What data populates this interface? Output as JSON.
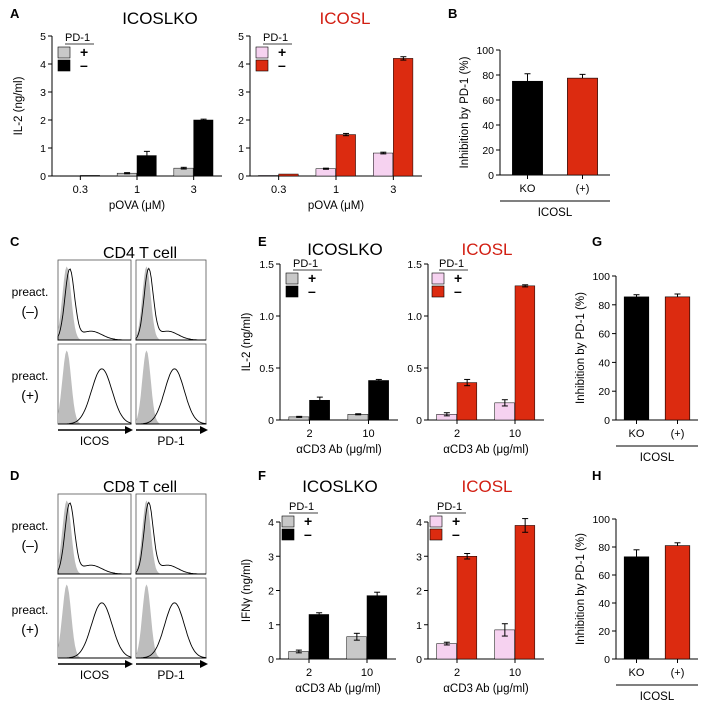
{
  "colors": {
    "ko_plus": "#c8c8c8",
    "ko_minus": "#000000",
    "wt_plus": "#f6d2f0",
    "wt_minus": "#dc2b10",
    "red_title": "#d21e12",
    "hist_fill": "#bdbdbd"
  },
  "chart_data": [
    {
      "id": "A-ko",
      "type": "bar",
      "panel": "A",
      "title": "ICOSLKO",
      "title_color": "black",
      "categories": [
        "0.3",
        "1",
        "3"
      ],
      "xlabel": "pOVA (μM)",
      "ylabel": "IL-2 (ng/ml)",
      "ylim": [
        0,
        5
      ],
      "yticks": [
        "0",
        "1",
        "2",
        "3",
        "4",
        "5"
      ],
      "tick_values": [
        0,
        1,
        2,
        3,
        4,
        5
      ],
      "legend": {
        "title": "PD-1",
        "labels": [
          "+",
          "–"
        ]
      },
      "series": [
        {
          "name": "+",
          "color_key": "ko_plus",
          "values": [
            0.01,
            0.1,
            0.28
          ],
          "errors": [
            0,
            0.02,
            0.03
          ]
        },
        {
          "name": "–",
          "color_key": "ko_minus",
          "values": [
            0.02,
            0.73,
            2.0
          ],
          "errors": [
            0,
            0.15,
            0.03
          ]
        }
      ]
    },
    {
      "id": "A-wt",
      "type": "bar",
      "panel": "",
      "title": "ICOSL",
      "title_color": "red",
      "categories": [
        "0.3",
        "1",
        "3"
      ],
      "xlabel": "pOVA (μM)",
      "ylabel": "",
      "ylim": [
        0,
        5
      ],
      "yticks": [
        "0",
        "1",
        "2",
        "3",
        "4",
        "5"
      ],
      "tick_values": [
        0,
        1,
        2,
        3,
        4,
        5
      ],
      "legend": {
        "title": "PD-1",
        "labels": [
          "+",
          "–"
        ]
      },
      "series": [
        {
          "name": "+",
          "color_key": "wt_plus",
          "values": [
            0.02,
            0.26,
            0.82
          ],
          "errors": [
            0,
            0.02,
            0.03
          ]
        },
        {
          "name": "–",
          "color_key": "wt_minus",
          "values": [
            0.07,
            1.48,
            4.2
          ],
          "errors": [
            0,
            0.04,
            0.06
          ]
        }
      ]
    },
    {
      "id": "B",
      "type": "bar",
      "panel": "B",
      "title": "",
      "title_color": "black",
      "categories": [
        "KO",
        "(+)"
      ],
      "xlabel": "ICOSL",
      "ylabel": "Inhibition by PD-1 (%)",
      "ylim": [
        0,
        100
      ],
      "yticks": [
        "0",
        "20",
        "40",
        "60",
        "80",
        "100"
      ],
      "tick_values": [
        0,
        20,
        40,
        60,
        80,
        100
      ],
      "series": [
        {
          "name": "Inhibition",
          "colors_key": [
            "ko_minus",
            "wt_minus"
          ],
          "values": [
            75,
            77.5
          ],
          "errors": [
            6,
            3
          ]
        }
      ]
    },
    {
      "id": "E-ko",
      "type": "bar",
      "panel": "E",
      "title": "ICOSLKO",
      "title_color": "black",
      "categories": [
        "2",
        "10"
      ],
      "xlabel": "αCD3 Ab (μg/ml)",
      "ylabel": "IL-2 (ng/ml)",
      "ylim": [
        0,
        1.5
      ],
      "yticks": [
        "0",
        "0.5",
        "1.0",
        "1.5"
      ],
      "tick_values": [
        0,
        0.5,
        1.0,
        1.5
      ],
      "legend": {
        "title": "PD-1",
        "labels": [
          "+",
          "–"
        ]
      },
      "series": [
        {
          "name": "+",
          "color_key": "ko_plus",
          "values": [
            0.03,
            0.055
          ],
          "errors": [
            0.005,
            0.005
          ]
        },
        {
          "name": "–",
          "color_key": "ko_minus",
          "values": [
            0.19,
            0.38
          ],
          "errors": [
            0.03,
            0.01
          ]
        }
      ]
    },
    {
      "id": "E-wt",
      "type": "bar",
      "panel": "",
      "title": "ICOSL",
      "title_color": "red",
      "categories": [
        "2",
        "10"
      ],
      "xlabel": "αCD3 Ab (μg/ml)",
      "ylabel": "",
      "ylim": [
        0,
        1.5
      ],
      "yticks": [
        "0",
        "0.5",
        "1.0",
        "1.5"
      ],
      "tick_values": [
        0,
        0.5,
        1.0,
        1.5
      ],
      "legend": {
        "title": "PD-1",
        "labels": [
          "+",
          "–"
        ]
      },
      "series": [
        {
          "name": "+",
          "color_key": "wt_plus",
          "values": [
            0.055,
            0.165
          ],
          "errors": [
            0.015,
            0.03
          ]
        },
        {
          "name": "–",
          "color_key": "wt_minus",
          "values": [
            0.36,
            1.29
          ],
          "errors": [
            0.03,
            0.01
          ]
        }
      ]
    },
    {
      "id": "G",
      "type": "bar",
      "panel": "G",
      "title": "",
      "title_color": "black",
      "categories": [
        "KO",
        "(+)"
      ],
      "xlabel": "ICOSL",
      "ylabel": "Inhibition by PD-1 (%)",
      "ylim": [
        0,
        100
      ],
      "yticks": [
        "0",
        "20",
        "40",
        "60",
        "80",
        "100"
      ],
      "tick_values": [
        0,
        20,
        40,
        60,
        80,
        100
      ],
      "series": [
        {
          "name": "Inhibition",
          "colors_key": [
            "ko_minus",
            "wt_minus"
          ],
          "values": [
            85.5,
            85.5
          ],
          "errors": [
            1.5,
            2
          ]
        }
      ]
    },
    {
      "id": "F-ko",
      "type": "bar",
      "panel": "F",
      "title": "ICOSLKO",
      "title_color": "black",
      "categories": [
        "2",
        "10"
      ],
      "xlabel": "αCD3 Ab (μg/ml)",
      "ylabel": "IFNγ (ng/ml)",
      "ylim": [
        0,
        4
      ],
      "yticks": [
        "0",
        "1",
        "2",
        "3",
        "4"
      ],
      "tick_values": [
        0,
        1,
        2,
        3,
        4
      ],
      "legend": {
        "title": "PD-1",
        "labels": [
          "+",
          "–"
        ]
      },
      "series": [
        {
          "name": "+",
          "color_key": "ko_plus",
          "values": [
            0.22,
            0.65
          ],
          "errors": [
            0.04,
            0.1
          ]
        },
        {
          "name": "–",
          "color_key": "ko_minus",
          "values": [
            1.3,
            1.85
          ],
          "errors": [
            0.05,
            0.1
          ]
        }
      ]
    },
    {
      "id": "F-wt",
      "type": "bar",
      "panel": "",
      "title": "ICOSL",
      "title_color": "red",
      "categories": [
        "2",
        "10"
      ],
      "xlabel": "αCD3 Ab (μg/ml)",
      "ylabel": "",
      "ylim": [
        0,
        4
      ],
      "yticks": [
        "0",
        "1",
        "2",
        "3",
        "4"
      ],
      "tick_values": [
        0,
        1,
        2,
        3,
        4
      ],
      "legend": {
        "title": "PD-1",
        "labels": [
          "+",
          "–"
        ]
      },
      "series": [
        {
          "name": "+",
          "color_key": "wt_plus",
          "values": [
            0.45,
            0.85
          ],
          "errors": [
            0.04,
            0.18
          ]
        },
        {
          "name": "–",
          "color_key": "wt_minus",
          "values": [
            3.0,
            3.9
          ],
          "errors": [
            0.08,
            0.2
          ]
        }
      ]
    },
    {
      "id": "H",
      "type": "bar",
      "panel": "H",
      "title": "",
      "title_color": "black",
      "categories": [
        "KO",
        "(+)"
      ],
      "xlabel": "ICOSL",
      "ylabel": "Inhibition by PD-1  (%)",
      "ylim": [
        0,
        100
      ],
      "yticks": [
        "0",
        "20",
        "40",
        "60",
        "80",
        "100"
      ],
      "tick_values": [
        0,
        20,
        40,
        60,
        80,
        100
      ],
      "series": [
        {
          "name": "Inhibition",
          "colors_key": [
            "ko_minus",
            "wt_minus"
          ],
          "values": [
            73,
            81
          ],
          "errors": [
            5,
            2
          ]
        }
      ]
    }
  ],
  "flow": [
    {
      "panel": "C",
      "title": "CD4 T cell",
      "row_labels": [
        [
          "preact.",
          "(–)"
        ],
        [
          "preact.",
          "(+)"
        ]
      ],
      "col_labels": [
        "ICOS",
        "PD-1"
      ]
    },
    {
      "panel": "D",
      "title": "CD8 T cell",
      "row_labels": [
        [
          "preact.",
          "(–)"
        ],
        [
          "preact.",
          "(+)"
        ]
      ],
      "col_labels": [
        "ICOS",
        "PD-1"
      ]
    }
  ]
}
